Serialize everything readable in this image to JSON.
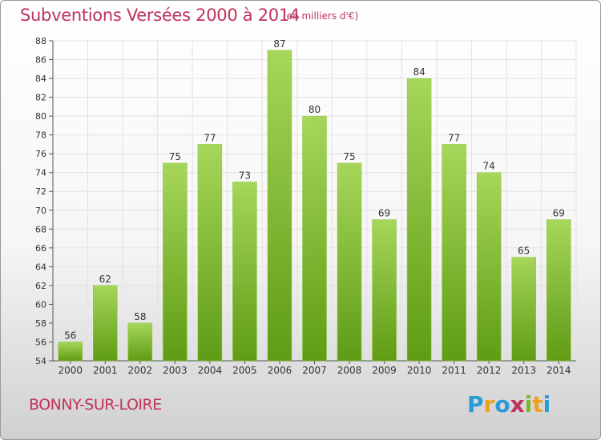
{
  "header": {
    "title": "Subventions Versées 2000 à 2014",
    "subtitle": "(en milliers d'€)"
  },
  "footer": {
    "commune": "BONNY-SUR-LOIRE",
    "logo_letters": [
      "P",
      "r",
      "o",
      "x",
      "i",
      "t",
      "i"
    ],
    "logo_colors": [
      "#2a9bd6",
      "#f0a020",
      "#2a9bd6",
      "#c0335a",
      "#7fb52a",
      "#f0a020",
      "#2a9bd6"
    ]
  },
  "colors": {
    "title": "#c0335a",
    "bar_light": "#a6d65a",
    "bar_dark": "#5f9c14",
    "grid": "#e2e2e2"
  },
  "chart_data": {
    "type": "bar",
    "title": "Subventions Versées 2000 à 2014",
    "subtitle": "(en milliers d'€)",
    "categories": [
      "2000",
      "2001",
      "2002",
      "2003",
      "2004",
      "2005",
      "2006",
      "2007",
      "2008",
      "2009",
      "2010",
      "2011",
      "2012",
      "2013",
      "2014"
    ],
    "values": [
      56,
      62,
      58,
      75,
      77,
      73,
      87,
      80,
      75,
      69,
      84,
      77,
      74,
      65,
      69
    ],
    "ylim": [
      54,
      88
    ],
    "yticks": [
      54,
      56,
      58,
      60,
      62,
      64,
      66,
      68,
      70,
      72,
      74,
      76,
      78,
      80,
      82,
      84,
      86,
      88
    ],
    "grid": true,
    "data_labels": true
  }
}
